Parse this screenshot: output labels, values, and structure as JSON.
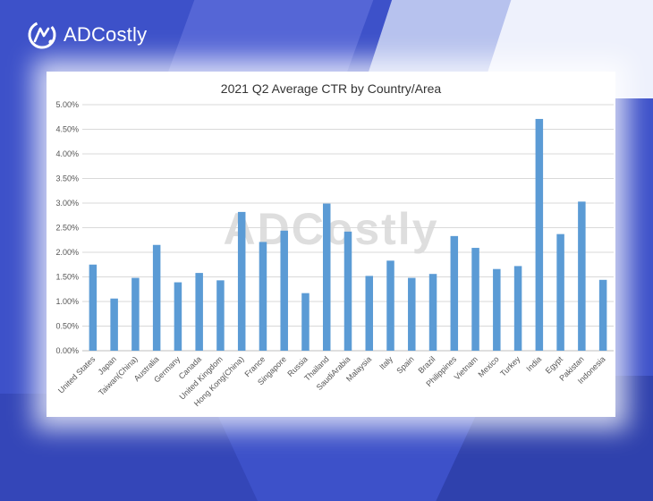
{
  "brand": {
    "name": "ADCostly",
    "logo_icon": "adcostly-logo-icon",
    "colors": {
      "background": "#3d51c9",
      "bar": "#5b9bd5",
      "grid": "#d9d9d9"
    }
  },
  "chart_data": {
    "type": "bar",
    "title": "2021 Q2 Average CTR by Country/Area",
    "watermark": "ADCostly",
    "xlabel": "",
    "ylabel": "",
    "ylim": [
      0,
      5
    ],
    "y_unit": "%",
    "y_ticks": [
      "0.00%",
      "0.50%",
      "1.00%",
      "1.50%",
      "2.00%",
      "2.50%",
      "3.00%",
      "3.50%",
      "4.00%",
      "4.50%",
      "5.00%"
    ],
    "grid": true,
    "legend": "none",
    "categories": [
      "United States",
      "Japan",
      "Taiwan(China)",
      "Australia",
      "Germany",
      "Canada",
      "United Kingdom",
      "Hong Kong(China)",
      "France",
      "Singapore",
      "Russia",
      "Thailand",
      "SaudiArabia",
      "Malaysia",
      "Italy",
      "Spain",
      "Brazil",
      "Philippines",
      "Vietnam",
      "Mexico",
      "Turkey",
      "India",
      "Egypt",
      "Pakistan",
      "Indonesia"
    ],
    "values": [
      1.75,
      1.06,
      1.48,
      2.15,
      1.39,
      1.58,
      1.43,
      2.82,
      2.21,
      2.44,
      1.17,
      2.99,
      2.42,
      1.52,
      1.83,
      1.48,
      1.56,
      2.33,
      2.09,
      1.66,
      1.72,
      4.71,
      2.37,
      3.03,
      1.44
    ]
  }
}
